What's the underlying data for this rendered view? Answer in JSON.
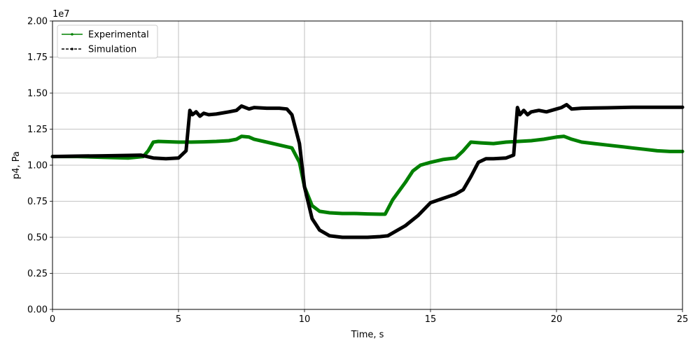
{
  "chart_data": {
    "type": "line",
    "xlabel": "Time, s",
    "ylabel": "p4, Pa",
    "offset_label": "1e7",
    "xlim": [
      0,
      25
    ],
    "ylim": [
      0,
      2.0
    ],
    "x_ticks": [
      0,
      5,
      10,
      15,
      20,
      25
    ],
    "x_tick_labels": [
      "0",
      "5",
      "10",
      "15",
      "20",
      "25"
    ],
    "y_ticks": [
      0,
      0.25,
      0.5,
      0.75,
      1.0,
      1.25,
      1.5,
      1.75,
      2.0
    ],
    "y_tick_labels": [
      "0.00",
      "0.25",
      "0.50",
      "0.75",
      "1.00",
      "1.25",
      "1.50",
      "1.75",
      "2.00"
    ],
    "grid": true,
    "legend_position": "top-left",
    "series": [
      {
        "name": "Experimental",
        "color": "#008000",
        "linestyle": "solid",
        "x": [
          0,
          1,
          2,
          3,
          3.6,
          3.8,
          4.0,
          4.2,
          5,
          5.5,
          6,
          6.5,
          7,
          7.3,
          7.5,
          7.8,
          8.0,
          8.5,
          9.0,
          9.5,
          9.8,
          10.0,
          10.3,
          10.6,
          11,
          11.5,
          12,
          12.5,
          13,
          13.2,
          13.5,
          14,
          14.3,
          14.6,
          15,
          15.5,
          16,
          16.3,
          16.6,
          17,
          17.5,
          18,
          18.5,
          19,
          19.5,
          20,
          20.3,
          20.6,
          21,
          21.5,
          22,
          22.5,
          23,
          23.5,
          24,
          24.5,
          25
        ],
        "values": [
          1.06,
          1.06,
          1.055,
          1.05,
          1.06,
          1.1,
          1.16,
          1.165,
          1.16,
          1.16,
          1.162,
          1.165,
          1.17,
          1.18,
          1.2,
          1.195,
          1.18,
          1.16,
          1.14,
          1.12,
          1.02,
          0.85,
          0.72,
          0.68,
          0.67,
          0.665,
          0.665,
          0.662,
          0.66,
          0.66,
          0.76,
          0.88,
          0.96,
          1.0,
          1.02,
          1.04,
          1.05,
          1.1,
          1.16,
          1.155,
          1.15,
          1.16,
          1.165,
          1.17,
          1.18,
          1.195,
          1.2,
          1.18,
          1.16,
          1.15,
          1.14,
          1.13,
          1.12,
          1.11,
          1.1,
          1.095,
          1.095
        ]
      },
      {
        "name": "Simulation",
        "color": "#000000",
        "linestyle": "dashed",
        "x": [
          0,
          1,
          2,
          3,
          3.5,
          4,
          4.5,
          5,
          5.3,
          5.45,
          5.55,
          5.7,
          5.85,
          6.0,
          6.2,
          6.5,
          7,
          7.3,
          7.5,
          7.8,
          8.0,
          8.5,
          9,
          9.3,
          9.5,
          9.8,
          10.0,
          10.3,
          10.6,
          11,
          11.5,
          12,
          12.5,
          13.0,
          13.3,
          13.7,
          14,
          14.5,
          15,
          15.5,
          16,
          16.3,
          16.6,
          16.9,
          17.2,
          17.5,
          18,
          18.3,
          18.45,
          18.55,
          18.7,
          18.85,
          19.0,
          19.3,
          19.6,
          20,
          20.2,
          20.4,
          20.6,
          21,
          21.5,
          22,
          22.5,
          23,
          24,
          25
        ],
        "values": [
          1.06,
          1.063,
          1.065,
          1.068,
          1.07,
          1.05,
          1.045,
          1.05,
          1.1,
          1.38,
          1.35,
          1.37,
          1.34,
          1.36,
          1.35,
          1.355,
          1.37,
          1.38,
          1.41,
          1.39,
          1.4,
          1.395,
          1.395,
          1.39,
          1.35,
          1.15,
          0.85,
          0.63,
          0.55,
          0.51,
          0.5,
          0.5,
          0.5,
          0.505,
          0.51,
          0.55,
          0.58,
          0.65,
          0.74,
          0.77,
          0.8,
          0.83,
          0.92,
          1.02,
          1.045,
          1.045,
          1.05,
          1.07,
          1.4,
          1.35,
          1.38,
          1.35,
          1.37,
          1.38,
          1.37,
          1.39,
          1.4,
          1.42,
          1.39,
          1.395,
          1.397,
          1.398,
          1.4,
          1.402,
          1.402,
          1.402
        ]
      }
    ]
  }
}
